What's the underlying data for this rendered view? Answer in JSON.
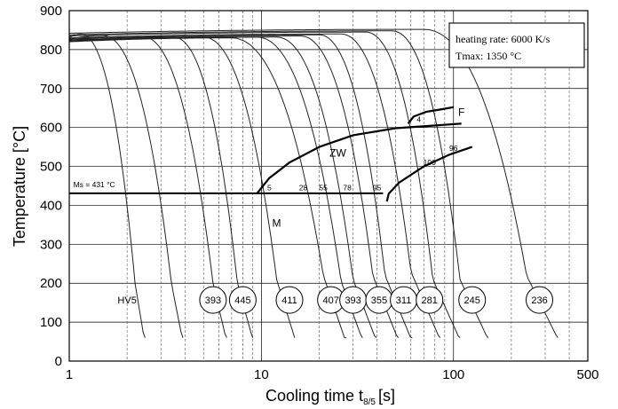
{
  "chart_data": {
    "type": "line",
    "title": "",
    "xlabel_main": "Cooling time t",
    "xlabel_sub": "8/5",
    "xlabel_unit": "[s]",
    "ylabel": "Temperature [°C]",
    "x_scale": "log",
    "xlim": [
      1,
      500
    ],
    "ylim": [
      0,
      900
    ],
    "x_ticks": [
      {
        "value": 1,
        "label": "1"
      },
      {
        "value": 10,
        "label": "10"
      },
      {
        "value": 100,
        "label": "100"
      },
      {
        "value": 500,
        "label": "500"
      }
    ],
    "y_ticks": [
      {
        "value": 0,
        "label": "0"
      },
      {
        "value": 100,
        "label": "100"
      },
      {
        "value": 200,
        "label": "200"
      },
      {
        "value": 300,
        "label": "300"
      },
      {
        "value": 400,
        "label": "400"
      },
      {
        "value": 500,
        "label": "500"
      },
      {
        "value": 600,
        "label": "600"
      },
      {
        "value": 700,
        "label": "700"
      },
      {
        "value": 800,
        "label": "800"
      },
      {
        "value": 900,
        "label": "900"
      }
    ],
    "grid": "on",
    "info_box": [
      "heating rate: 6000 K/s",
      "Tmax: 1350 °C"
    ],
    "ms_label": "Ms = 431 °C",
    "ms_temperature": 431,
    "ms_line_x": [
      1,
      43
    ],
    "phase_labels": [
      {
        "text": "F",
        "x": 110,
        "y": 630
      },
      {
        "text": "ZW",
        "x": 25,
        "y": 525
      },
      {
        "text": "M",
        "x": 12,
        "y": 345
      }
    ],
    "boundaries": [
      {
        "id": "zw-start",
        "points": [
          [
            9.5,
            431
          ],
          [
            11,
            470
          ],
          [
            14,
            510
          ],
          [
            20,
            550
          ],
          [
            30,
            580
          ],
          [
            50,
            598
          ],
          [
            75,
            604
          ],
          [
            110,
            610
          ]
        ]
      },
      {
        "id": "ferrite-start",
        "points": [
          [
            58,
            610
          ],
          [
            62,
            628
          ],
          [
            72,
            640
          ],
          [
            85,
            646
          ],
          [
            100,
            652
          ]
        ]
      },
      {
        "id": "bainite-finish",
        "points": [
          [
            45,
            410
          ],
          [
            46,
            430
          ],
          [
            52,
            458
          ],
          [
            70,
            500
          ],
          [
            95,
            530
          ],
          [
            125,
            550
          ]
        ]
      }
    ],
    "transformation_percents": [
      {
        "text": "5",
        "x": 11,
        "y": 439
      },
      {
        "text": "28",
        "x": 16.5,
        "y": 439
      },
      {
        "text": "55",
        "x": 21,
        "y": 439
      },
      {
        "text": "78",
        "x": 28,
        "y": 439
      },
      {
        "text": "95",
        "x": 40,
        "y": 439
      },
      {
        "text": "4",
        "x": 66,
        "y": 614
      },
      {
        "text": "100",
        "x": 75,
        "y": 503
      },
      {
        "text": "96",
        "x": 100,
        "y": 540
      }
    ],
    "cooling_curves": [
      {
        "t0": 830,
        "x1": 1.15,
        "x2": 2.2,
        "yk": 200,
        "slope": 3000
      },
      {
        "t0": 826,
        "x1": 1.5,
        "x2": 3.4,
        "yk": 200,
        "slope": 2500
      },
      {
        "t0": 824,
        "x1": 2.4,
        "x2": 5.6,
        "yk": 200,
        "slope": 2100
      },
      {
        "t0": 822,
        "x1": 3.5,
        "x2": 7.5,
        "yk": 200,
        "slope": 1800
      },
      {
        "t0": 822,
        "x1": 5,
        "x2": 12,
        "yk": 210,
        "slope": 1600
      },
      {
        "t0": 820,
        "x1": 7,
        "x2": 21,
        "yk": 220,
        "slope": 1450
      },
      {
        "t0": 822,
        "x1": 9.5,
        "x2": 26,
        "yk": 205,
        "slope": 1350
      },
      {
        "t0": 822,
        "x1": 12,
        "x2": 30,
        "yk": 210,
        "slope": 1300
      },
      {
        "t0": 825,
        "x1": 16,
        "x2": 38,
        "yk": 220,
        "slope": 1250
      },
      {
        "t0": 828,
        "x1": 20,
        "x2": 44,
        "yk": 220,
        "slope": 1200
      },
      {
        "t0": 830,
        "x1": 26,
        "x2": 60,
        "yk": 230,
        "slope": 1150
      },
      {
        "t0": 835,
        "x1": 35,
        "x2": 78,
        "yk": 210,
        "slope": 1100
      },
      {
        "t0": 838,
        "x1": 48,
        "x2": 108,
        "yk": 210,
        "slope": 1050
      },
      {
        "t0": 842,
        "x1": 70,
        "x2": 240,
        "yk": 220,
        "slope": 1000
      }
    ],
    "hardness_label": "HV5",
    "hardness_values": [
      {
        "value": "393",
        "x": 5.6
      },
      {
        "value": "445",
        "x": 8
      },
      {
        "value": "411",
        "x": 14
      },
      {
        "value": "407",
        "x": 23
      },
      {
        "value": "393",
        "x": 30
      },
      {
        "value": "355",
        "x": 41
      },
      {
        "value": "311",
        "x": 55
      },
      {
        "value": "281",
        "x": 75
      },
      {
        "value": "245",
        "x": 125
      },
      {
        "value": "236",
        "x": 280
      }
    ],
    "hardness_row_y": 157
  }
}
